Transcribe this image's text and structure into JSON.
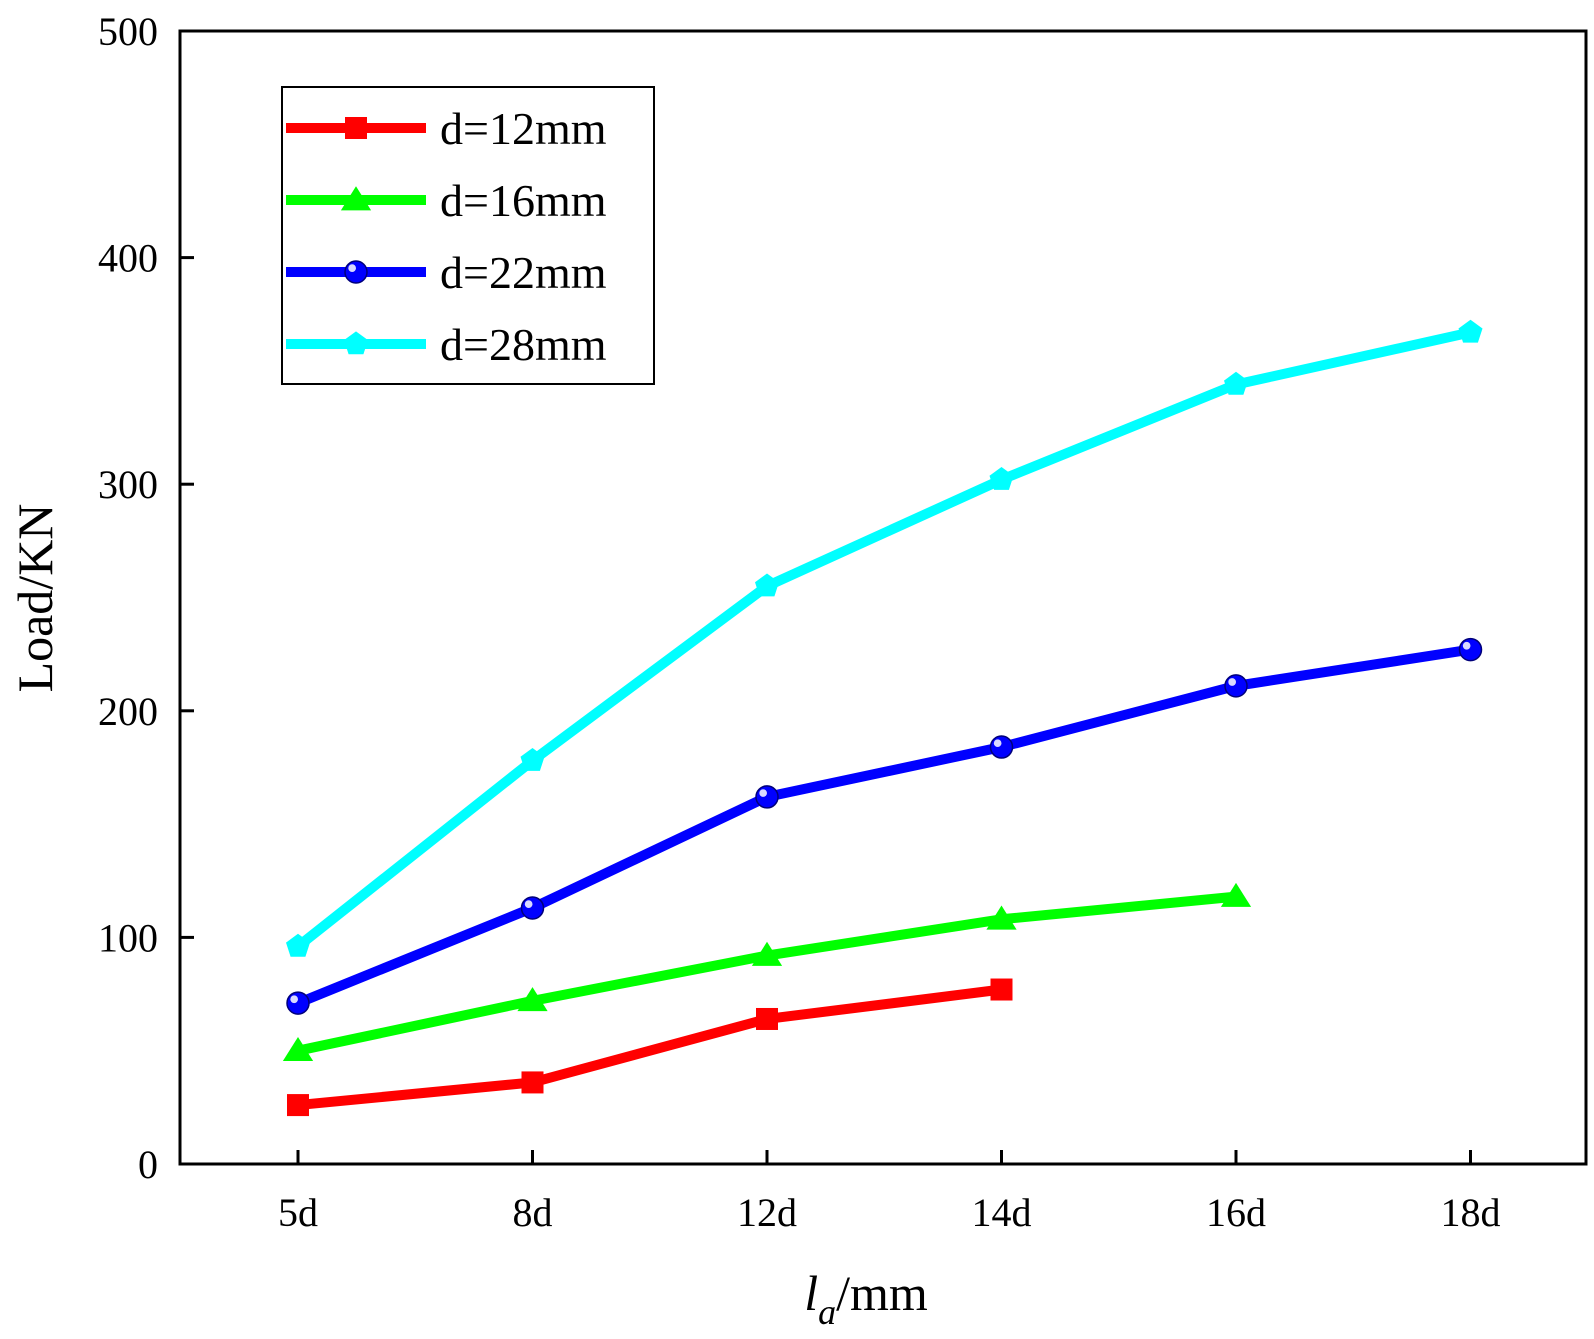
{
  "chart_data": {
    "type": "line",
    "title": "",
    "xlabel_main": "l",
    "xlabel_sub": "a",
    "xlabel_unit": "/mm",
    "ylabel": "Load/KN",
    "categories": [
      "5d",
      "8d",
      "12d",
      "14d",
      "16d",
      "18d"
    ],
    "ylim": [
      0,
      500
    ],
    "yticks": [
      "0",
      "100",
      "200",
      "300",
      "400",
      "500"
    ],
    "grid": false,
    "legend_position": "top-left",
    "series": [
      {
        "name": "d=12mm",
        "color": "#ff0000",
        "marker": "square",
        "values": [
          26,
          36,
          64,
          77,
          null,
          null
        ]
      },
      {
        "name": "d=16mm",
        "color": "#00ff00",
        "marker": "triangle",
        "values": [
          50,
          72,
          92,
          108,
          118,
          null
        ]
      },
      {
        "name": "d=22mm",
        "color": "#0000ff",
        "marker": "circle",
        "values": [
          71,
          113,
          162,
          184,
          211,
          227
        ]
      },
      {
        "name": "d=28mm",
        "color": "#00ffff",
        "marker": "pentagon",
        "values": [
          96,
          178,
          255,
          302,
          344,
          367
        ]
      }
    ]
  }
}
